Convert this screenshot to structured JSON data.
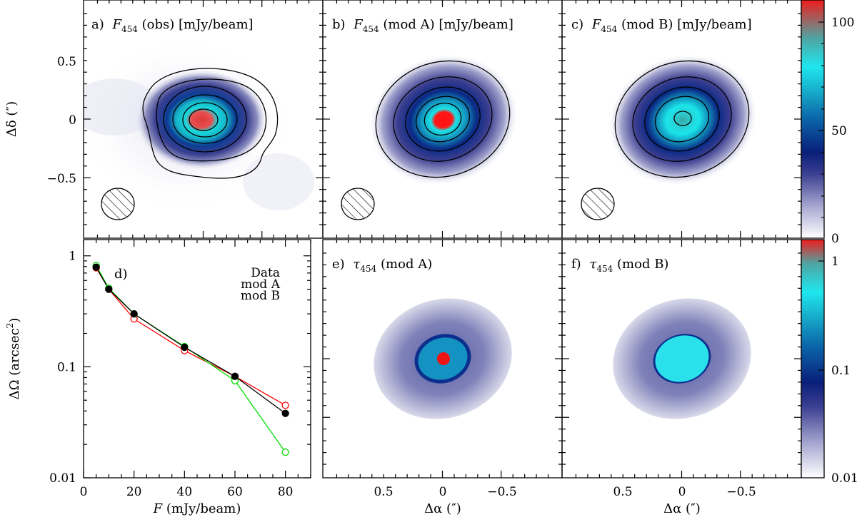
{
  "panels": {
    "a": {
      "letter": "a)",
      "quantity": "F",
      "sub": "454",
      "rest": " (obs) [mJy/beam]"
    },
    "b": {
      "letter": "b)",
      "quantity": "F",
      "sub": "454",
      "rest": " (mod A) [mJy/beam]"
    },
    "c": {
      "letter": "c)",
      "quantity": "F",
      "sub": "454",
      "rest": " (mod B) [mJy/beam]"
    },
    "d": {
      "letter": "d)"
    },
    "e": {
      "letter": "e)",
      "quantity": "τ",
      "sub": "454",
      "rest": " (mod A)"
    },
    "f": {
      "letter": "f)",
      "quantity": "τ",
      "sub": "454",
      "rest": " (mod B)"
    }
  },
  "axes": {
    "dec_label": "Δδ (″)",
    "ra_label": "Δα (″)",
    "omega_label_main": "ΔΩ (arcsec",
    "omega_label_sup": "2",
    "omega_label_end": ")",
    "flux_label_var": "F",
    "flux_label_unit": " (mJy/beam)",
    "dec_ticks": [
      "0.5",
      "0",
      "−0.5"
    ],
    "ra_ticks": [
      "0.5",
      "0",
      "−0.5"
    ],
    "flux_ticks": [
      "0",
      "20",
      "40",
      "60",
      "80"
    ],
    "omega_ticks": [
      "1",
      "0.1",
      "0.01"
    ]
  },
  "colorbars": {
    "flux": {
      "ticks": [
        "100",
        "50",
        "0"
      ]
    },
    "tau": {
      "ticks": [
        "1",
        "0.1",
        "0.01"
      ]
    }
  },
  "colors": {
    "data": "#000000",
    "modA": "#ff0000",
    "modB": "#00dd00"
  },
  "chart_data": {
    "type": "line",
    "title": "d)",
    "xlabel": "F (mJy/beam)",
    "ylabel": "ΔΩ (arcsec^2)",
    "xlim": [
      0,
      90
    ],
    "ylim": [
      0.01,
      1.4
    ],
    "yscale": "log",
    "legend_position": "top-right",
    "x": [
      5,
      10,
      20,
      40,
      60,
      80
    ],
    "series": [
      {
        "name": "Data",
        "marker": "filled",
        "values": [
          0.79,
          0.5,
          0.3,
          0.15,
          0.082,
          0.038
        ]
      },
      {
        "name": "mod A",
        "marker": "open",
        "values": [
          0.78,
          0.5,
          0.27,
          0.14,
          0.082,
          0.045
        ]
      },
      {
        "name": "mod B",
        "marker": "open",
        "values": [
          0.82,
          0.51,
          0.3,
          0.152,
          0.075,
          0.017
        ]
      }
    ]
  }
}
